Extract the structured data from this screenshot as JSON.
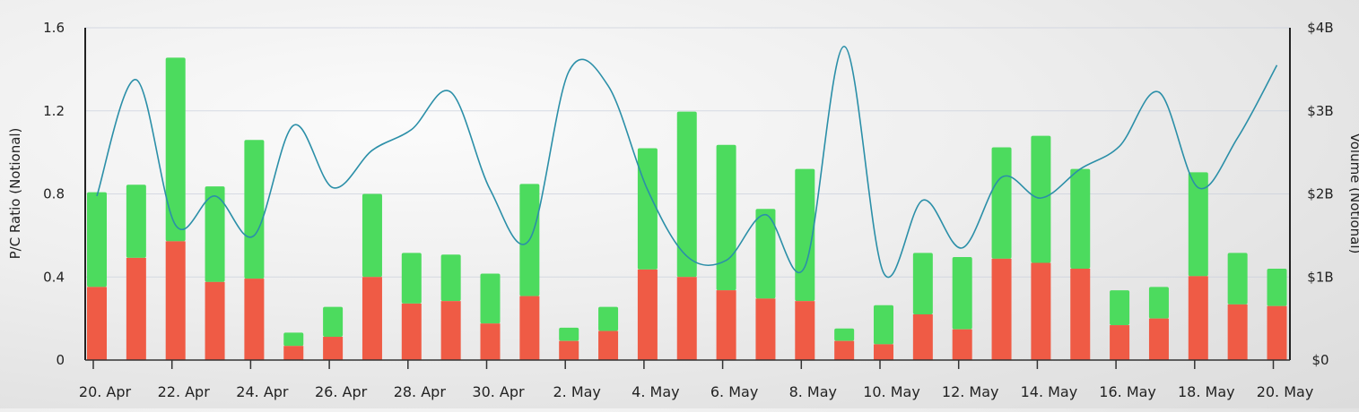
{
  "chart_data": {
    "type": "bar",
    "title": "",
    "ylabel": "P/C Ratio (Notional)",
    "y2label": "Volume (Notional)",
    "ylim": [
      0,
      1.6
    ],
    "y2lim": [
      0,
      4
    ],
    "yticks": [
      "0",
      "0.4",
      "0.8",
      "1.2",
      "1.6"
    ],
    "y2ticks": [
      "$0",
      "$1B",
      "$2B",
      "$3B",
      "$4B"
    ],
    "xtick_labels": [
      "20. Apr",
      "22. Apr",
      "24. Apr",
      "26. Apr",
      "28. Apr",
      "30. Apr",
      "2. May",
      "4. May",
      "6. May",
      "8. May",
      "10. May",
      "12. May",
      "14. May",
      "16. May",
      "18. May",
      "20. May"
    ],
    "categories": [
      "20. Apr",
      "21. Apr",
      "22. Apr",
      "23. Apr",
      "24. Apr",
      "25. Apr",
      "26. Apr",
      "27. Apr",
      "28. Apr",
      "29. Apr",
      "30. Apr",
      "1. May",
      "2. May",
      "3. May",
      "4. May",
      "5. May",
      "6. May",
      "7. May",
      "8. May",
      "9. May",
      "10. May",
      "11. May",
      "12. May",
      "13. May",
      "14. May",
      "15. May",
      "16. May",
      "17. May",
      "18. May",
      "19. May",
      "20. May"
    ],
    "series": [
      {
        "color": "#ef5b45",
        "axis": "right",
        "stack": "volume",
        "values": [
          0.88,
          1.23,
          1.43,
          0.94,
          0.98,
          0.17,
          0.28,
          1.0,
          0.68,
          0.71,
          0.44,
          0.77,
          0.23,
          0.35,
          1.09,
          1.0,
          0.84,
          0.74,
          0.71,
          0.23,
          0.19,
          0.55,
          0.37,
          1.22,
          1.17,
          1.1,
          0.42,
          0.5,
          1.01,
          0.67,
          0.65
        ]
      },
      {
        "color": "#4cdb5e",
        "axis": "right",
        "stack": "volume",
        "values": [
          1.14,
          0.88,
          2.21,
          1.15,
          1.67,
          0.16,
          0.36,
          1.0,
          0.61,
          0.56,
          0.6,
          1.35,
          0.16,
          0.29,
          1.46,
          1.99,
          1.75,
          1.08,
          1.59,
          0.15,
          0.47,
          0.74,
          0.87,
          1.34,
          1.53,
          1.2,
          0.42,
          0.38,
          1.25,
          0.62,
          0.45
        ]
      },
      {
        "color": "#2b8fa8",
        "axis": "left",
        "type": "line",
        "values": [
          0.79,
          1.35,
          0.65,
          0.79,
          0.6,
          1.13,
          0.83,
          1.01,
          1.11,
          1.29,
          0.82,
          0.58,
          1.39,
          1.32,
          0.82,
          0.5,
          0.48,
          0.7,
          0.45,
          1.51,
          0.42,
          0.77,
          0.54,
          0.88,
          0.78,
          0.92,
          1.03,
          1.29,
          0.83,
          1.07,
          1.42
        ]
      }
    ]
  }
}
